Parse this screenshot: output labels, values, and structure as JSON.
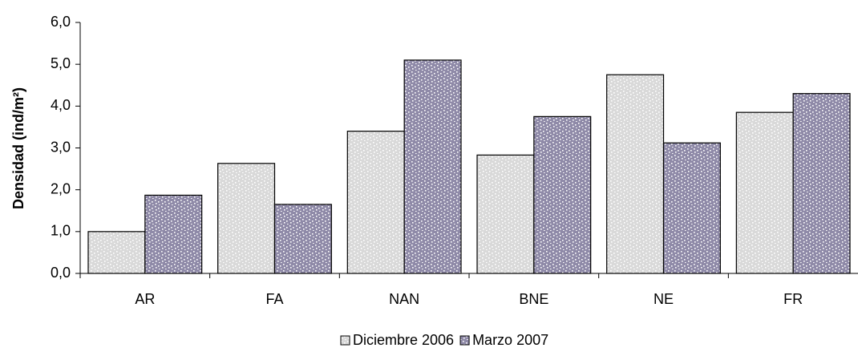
{
  "chart_data": {
    "type": "bar",
    "ylabel": "Densidad (ind/m²)",
    "categories": [
      "AR",
      "FA",
      "NAN",
      "BNE",
      "NE",
      "FR"
    ],
    "series": [
      {
        "name": "Diciembre 2006",
        "color": "#d9d9d9",
        "values": [
          1.0,
          2.63,
          3.4,
          2.83,
          4.75,
          3.85
        ]
      },
      {
        "name": "Marzo 2007",
        "color": "#8f8aa8",
        "values": [
          1.87,
          1.65,
          5.1,
          3.75,
          3.12,
          4.3
        ]
      }
    ],
    "ylim": [
      0,
      6
    ],
    "yticks": [
      {
        "value": 0,
        "label": "0,0"
      },
      {
        "value": 1,
        "label": "1,0"
      },
      {
        "value": 2,
        "label": "2,0"
      },
      {
        "value": 3,
        "label": "3,0"
      },
      {
        "value": 4,
        "label": "4,0"
      },
      {
        "value": 5,
        "label": "5,0"
      },
      {
        "value": 6,
        "label": "6,0"
      }
    ],
    "grid": false,
    "legend": "bottom"
  }
}
